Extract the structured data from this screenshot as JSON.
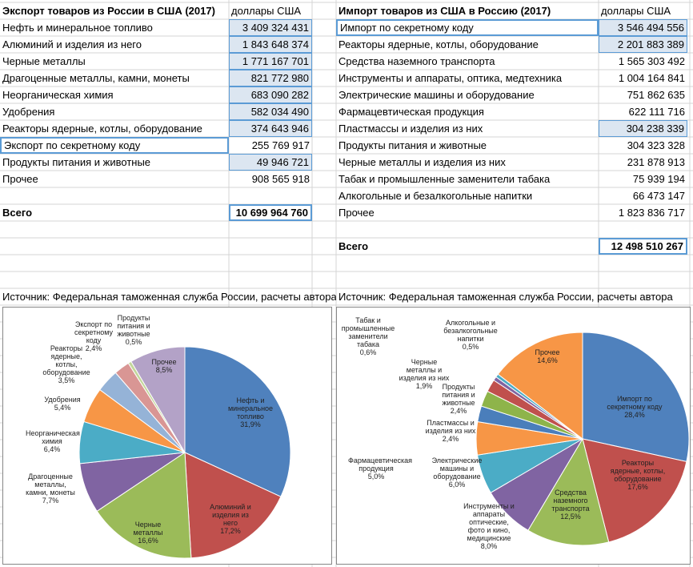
{
  "export_table": {
    "title": "Экспорт товаров из России в США (2017)",
    "unit": "доллары США",
    "rows": [
      [
        "Нефть и минеральное топливо",
        "3 409 324 431"
      ],
      [
        "Алюминий и изделия из него",
        "1 843 648 374"
      ],
      [
        "Черные металлы",
        "1 771 167 701"
      ],
      [
        "Драгоценные металлы, камни, монеты",
        "821 772 980"
      ],
      [
        "Неорганическая химия",
        "683 090 282"
      ],
      [
        "Удобрения",
        "582 034 490"
      ],
      [
        "Реакторы ядерные, котлы, оборудование",
        "374 643 946"
      ],
      [
        "Экспорт по секретному коду",
        "255 769 917"
      ],
      [
        "Продукты питания и животные",
        "49 946 721"
      ],
      [
        "Прочее",
        "908 565 918"
      ]
    ],
    "total": [
      "Всего",
      "10 699 964 760"
    ],
    "source": "Источник: Федеральная таможенная служба России, расчеты автора"
  },
  "import_table": {
    "title": "Импорт товаров из США в Россию (2017)",
    "unit": "доллары США",
    "rows": [
      [
        "Импорт по секретному коду",
        "3 546 494 556"
      ],
      [
        "Реакторы ядерные, котлы, оборудование",
        "2 201 883 389"
      ],
      [
        "Средства наземного транспорта",
        "1 565 303 492"
      ],
      [
        "Инструменты и аппараты, оптика, медтехника",
        "1 004 164 841"
      ],
      [
        "Электрические машины и оборудование",
        "751 862 635"
      ],
      [
        "Фармацевтическая продукция",
        "622 111 716"
      ],
      [
        "Пластмассы и изделия из них",
        "304 238 339"
      ],
      [
        "Продукты питания и животные",
        "304 323 328"
      ],
      [
        "Черные металлы и изделия из них",
        "231 878 913"
      ],
      [
        "Табак и промышленные заменители табака",
        "75 939 194"
      ],
      [
        "Алкогольные и безалкогольные напитки",
        "66 473 147"
      ],
      [
        "Прочее",
        "1 823 836 717"
      ]
    ],
    "total": [
      "Всего",
      "12 498 510 267"
    ],
    "source": "Источник: Федеральная таможенная служба России, расчеты автора"
  },
  "chart_data": [
    {
      "type": "pie",
      "categories": [
        "Нефть и минеральное топливо",
        "Алюминий и изделия из него",
        "Черные металлы",
        "Драгоценные металлы, камни, монеты",
        "Неорганическая химия",
        "Удобрения",
        "Реакторы ядерные, котлы, оборудование",
        "Экспорт по секретному коду",
        "Продукты питания и животные",
        "Прочее"
      ],
      "values": [
        31.9,
        17.2,
        16.6,
        7.7,
        6.4,
        5.4,
        3.5,
        2.4,
        0.5,
        8.5
      ],
      "value_labels": [
        "31,9%",
        "17,2%",
        "16,6%",
        "7,7%",
        "6,4%",
        "5,4%",
        "3,5%",
        "2,4%",
        "0,5%",
        "8,5%"
      ],
      "colors": [
        "#4f81bd",
        "#c0504d",
        "#9bbb59",
        "#8064a2",
        "#4bacc6",
        "#f79646",
        "#95b3d7",
        "#d99694",
        "#c3d69b",
        "#b3a2c7"
      ]
    },
    {
      "type": "pie",
      "categories": [
        "Импорт по секретному коду",
        "Реакторы ядерные, котлы, оборудование",
        "Средства наземного транспорта",
        "Инструменты и аппараты оптические, фото и кино, медицинские",
        "Электрические машины и оборудование",
        "Фармацевтическая продукция",
        "Пластмассы и изделия из них",
        "Продукты питания и животные",
        "Черные металлы и изделия из них",
        "Табак и промышленные заменители табака",
        "Алкогольные и безалкогольные напитки",
        "Прочее"
      ],
      "values": [
        28.4,
        17.6,
        12.5,
        8.0,
        6.0,
        5.0,
        2.4,
        2.4,
        1.9,
        0.6,
        0.5,
        14.6
      ],
      "value_labels": [
        "28,4%",
        "17,6%",
        "12,5%",
        "8,0%",
        "6,0%",
        "5,0%",
        "2,4%",
        "2,4%",
        "1,9%",
        "0,6%",
        "0,5%",
        "14,6%"
      ],
      "colors": [
        "#4f81bd",
        "#c0504d",
        "#9bbb59",
        "#8064a2",
        "#4bacc6",
        "#f79646",
        "#4a7ebb",
        "#8eb44a",
        "#c0504d",
        "#8064a2",
        "#4bacc6",
        "#f79646"
      ]
    }
  ]
}
